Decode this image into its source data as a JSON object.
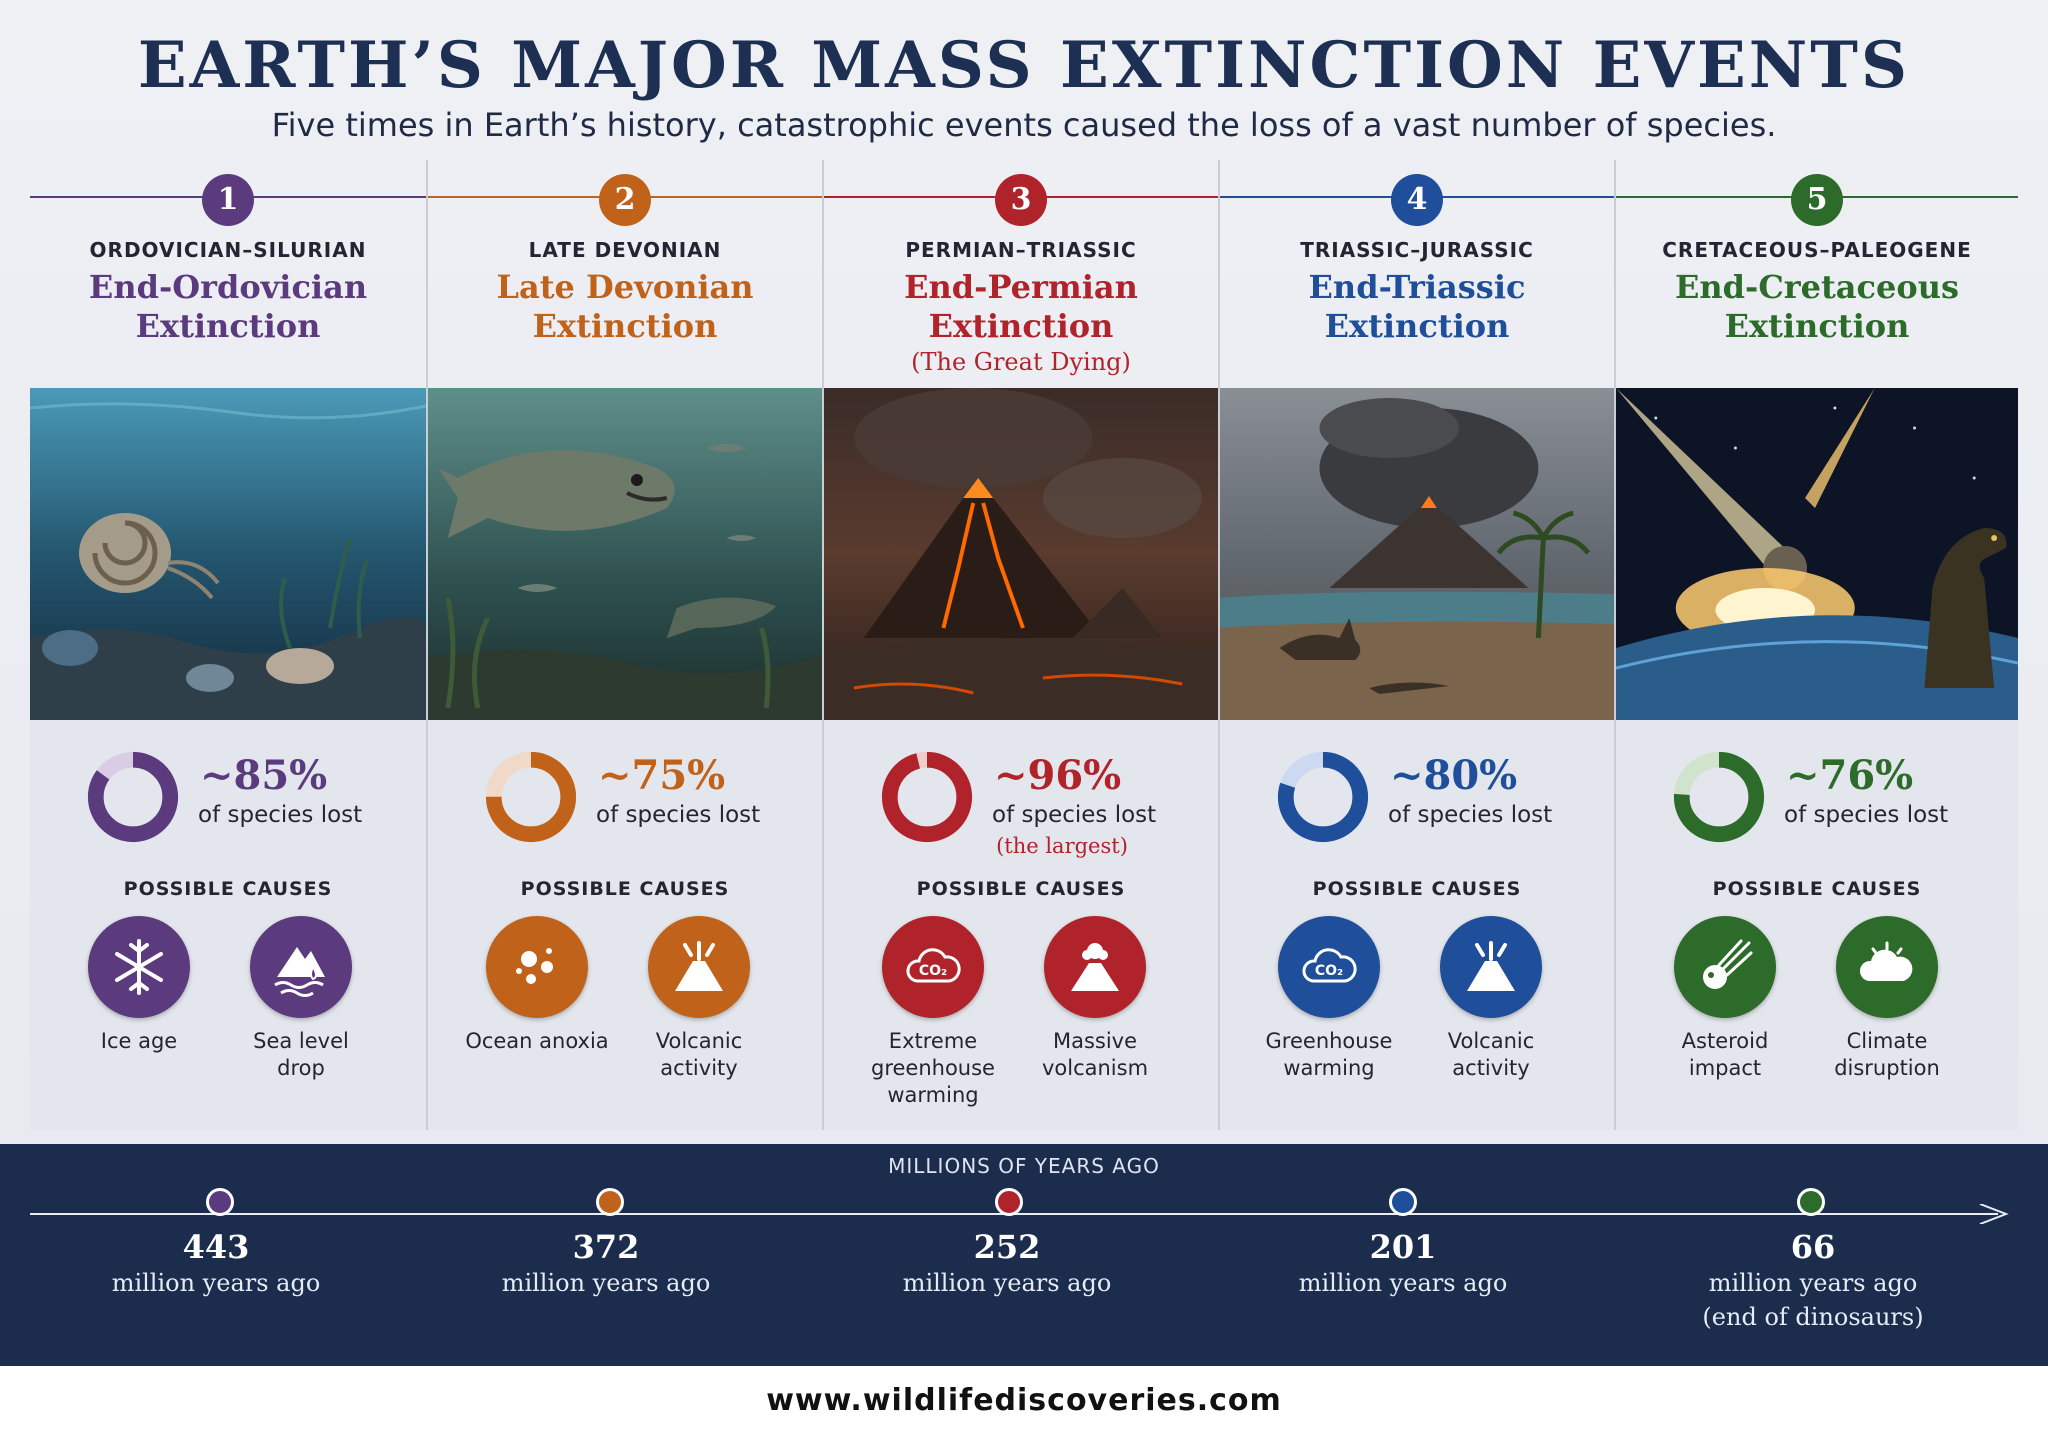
{
  "header": {
    "title": "EARTH’S MAJOR MASS EXTINCTION EVENTS",
    "subtitle": "Five times in Earth’s history, catastrophic events caused the loss of a vast number of species."
  },
  "causes_heading": "POSSIBLE CAUSES",
  "events": [
    {
      "number": "1",
      "period": "ORDOVICIAN–SILURIAN",
      "name_line1": "End-Ordovician",
      "name_line2": "Extinction",
      "note": "",
      "percent": "~85%",
      "percent_value": 85,
      "percent_label": "of species lost",
      "percent_note": "",
      "color": "#5b3a7e",
      "light": "#d9cde5",
      "causes": [
        {
          "label": "Ice age",
          "icon": "snowflake-icon"
        },
        {
          "label": "Sea level drop",
          "icon": "mountain-water-icon"
        }
      ]
    },
    {
      "number": "2",
      "period": "LATE DEVONIAN",
      "name_line1": "Late Devonian",
      "name_line2": "Extinction",
      "note": "",
      "percent": "~75%",
      "percent_value": 75,
      "percent_label": "of species lost",
      "percent_note": "",
      "color": "#c0621a",
      "light": "#f0d9c6",
      "causes": [
        {
          "label": "Ocean anoxia",
          "icon": "bubbles-icon"
        },
        {
          "label": "Volcanic activity",
          "icon": "volcano-icon"
        }
      ]
    },
    {
      "number": "3",
      "period": "PERMIAN–TRIASSIC",
      "name_line1": "End-Permian",
      "name_line2": "Extinction",
      "note": "(The Great Dying)",
      "percent": "~96%",
      "percent_value": 96,
      "percent_label": "of species lost",
      "percent_note": "(the largest)",
      "color": "#b0232a",
      "light": "#f0cccc",
      "causes": [
        {
          "label": "Extreme greenhouse warming",
          "icon": "co2-cloud-icon"
        },
        {
          "label": "Massive volcanism",
          "icon": "volcano-icon"
        }
      ]
    },
    {
      "number": "4",
      "period": "TRIASSIC–JURASSIC",
      "name_line1": "End-Triassic",
      "name_line2": "Extinction",
      "note": "",
      "percent": "~80%",
      "percent_value": 80,
      "percent_label": "of species lost",
      "percent_note": "",
      "color": "#1f4e9a",
      "light": "#cbdaf0",
      "causes": [
        {
          "label": "Greenhouse warming",
          "icon": "co2-cloud-icon"
        },
        {
          "label": "Volcanic activity",
          "icon": "volcano-icon"
        }
      ]
    },
    {
      "number": "5",
      "period": "CRETACEOUS–PALEOGENE",
      "name_line1": "End-Cretaceous",
      "name_line2": "Extinction",
      "note": "",
      "percent": "~76%",
      "percent_value": 76,
      "percent_label": "of species lost",
      "percent_note": "",
      "color": "#2c6b2a",
      "light": "#d0e3cd",
      "causes": [
        {
          "label": "Asteroid impact",
          "icon": "asteroid-icon"
        },
        {
          "label": "Climate disruption",
          "icon": "cloud-icon"
        }
      ]
    }
  ],
  "timeline": {
    "heading": "MILLIONS OF YEARS AGO",
    "points": [
      {
        "year": "443",
        "sub": "million years ago",
        "sub2": ""
      },
      {
        "year": "372",
        "sub": "million years ago",
        "sub2": ""
      },
      {
        "year": "252",
        "sub": "million years ago",
        "sub2": ""
      },
      {
        "year": "201",
        "sub": "million years ago",
        "sub2": ""
      },
      {
        "year": "66",
        "sub": "million years ago",
        "sub2": "(end of dinosaurs)"
      }
    ]
  },
  "footer": {
    "url": "www.wildlifediscoveries.com"
  }
}
